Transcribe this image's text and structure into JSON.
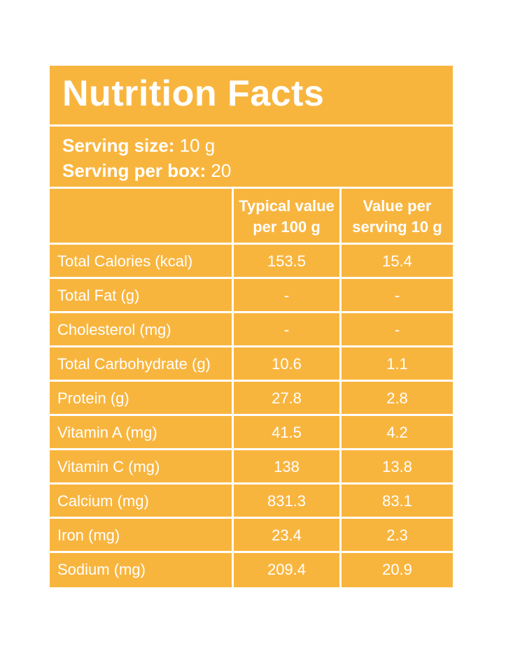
{
  "title": "Nutrition Facts",
  "serving": {
    "size_label": "Serving size:",
    "size_value": "10 g",
    "per_box_label": "Serving per box:",
    "per_box_value": "20"
  },
  "columns": {
    "col1_line1": "Typical value",
    "col1_line2": "per 100 g",
    "col2_line1": "Value per",
    "col2_line2": "serving 10 g"
  },
  "rows": [
    {
      "label": "Total Calories (kcal)",
      "per100": "153.5",
      "perServing": "15.4"
    },
    {
      "label": "Total Fat (g)",
      "per100": "-",
      "perServing": "-"
    },
    {
      "label": "Cholesterol (mg)",
      "per100": "-",
      "perServing": "-"
    },
    {
      "label": "Total Carbohydrate (g)",
      "per100": "10.6",
      "perServing": "1.1"
    },
    {
      "label": "Protein (g)",
      "per100": "27.8",
      "perServing": "2.8"
    },
    {
      "label": "Vitamin A (mg)",
      "per100": "41.5",
      "perServing": "4.2"
    },
    {
      "label": "Vitamin C (mg)",
      "per100": "138",
      "perServing": "13.8"
    },
    {
      "label": "Calcium (mg)",
      "per100": "831.3",
      "perServing": "83.1"
    },
    {
      "label": "Iron (mg)",
      "per100": "23.4",
      "perServing": "2.3"
    },
    {
      "label": "Sodium (mg)",
      "per100": "209.4",
      "perServing": "20.9"
    }
  ],
  "colors": {
    "panel": "#f8b53e",
    "text": "#ffffff",
    "lines": "#ffffff"
  }
}
